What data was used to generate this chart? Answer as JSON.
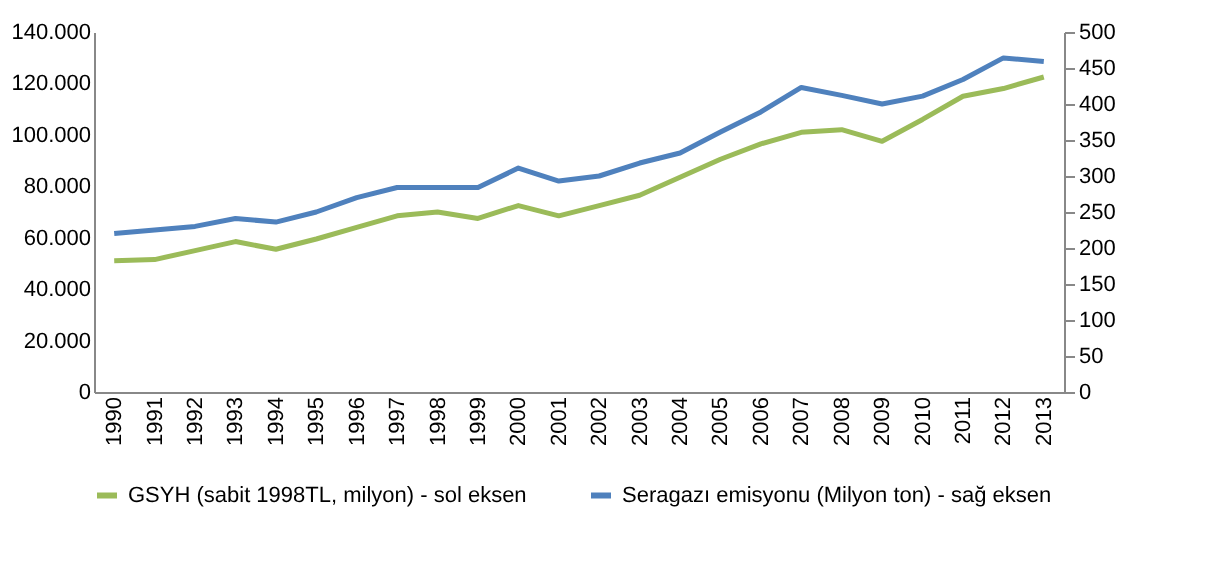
{
  "chart_data": {
    "type": "line",
    "categories": [
      "1990",
      "1991",
      "1992",
      "1993",
      "1994",
      "1995",
      "1996",
      "1997",
      "1998",
      "1999",
      "2000",
      "2001",
      "2002",
      "2003",
      "2004",
      "2005",
      "2006",
      "2007",
      "2008",
      "2009",
      "2010",
      "2011",
      "2012",
      "2013"
    ],
    "series": [
      {
        "name": "GSYH (sabit 1998TL, milyon) - sol eksen",
        "color": "#9bbb59",
        "values": [
          51000,
          51500,
          55000,
          58500,
          55500,
          59500,
          64000,
          68500,
          70000,
          67500,
          72500,
          68500,
          72500,
          76500,
          83500,
          90500,
          96500,
          101000,
          102000,
          97500,
          106000,
          115000,
          118000,
          122500
        ]
      },
      {
        "name": "Seragazı emisyonu (Milyon ton) - sağ eksen",
        "color": "#4f81bd",
        "axis": "y2",
        "values": [
          220,
          225,
          230,
          241,
          236,
          250,
          270,
          284,
          284,
          284,
          311,
          293,
          300,
          318,
          332,
          361,
          389,
          423,
          412,
          400,
          411,
          434,
          464,
          459
        ]
      }
    ],
    "ylim": [
      0,
      140000
    ],
    "yticks": [
      0,
      {
        "value": 20000,
        "label": "20.000"
      },
      {
        "value": 40000,
        "label": "40.000"
      },
      {
        "value": 60000,
        "label": "60.000"
      },
      {
        "value": 80000,
        "label": "80.000"
      },
      {
        "value": 100000,
        "label": "100.000"
      },
      {
        "value": 120000,
        "label": "120.000"
      },
      {
        "value": 140000,
        "label": "140.000"
      }
    ],
    "y2lim": [
      0,
      500
    ],
    "y2ticks": [
      0,
      50,
      100,
      150,
      200,
      250,
      300,
      350,
      400,
      450,
      500
    ],
    "grid": false,
    "legend": "bottom",
    "line_style": "solid",
    "marker": "none"
  }
}
